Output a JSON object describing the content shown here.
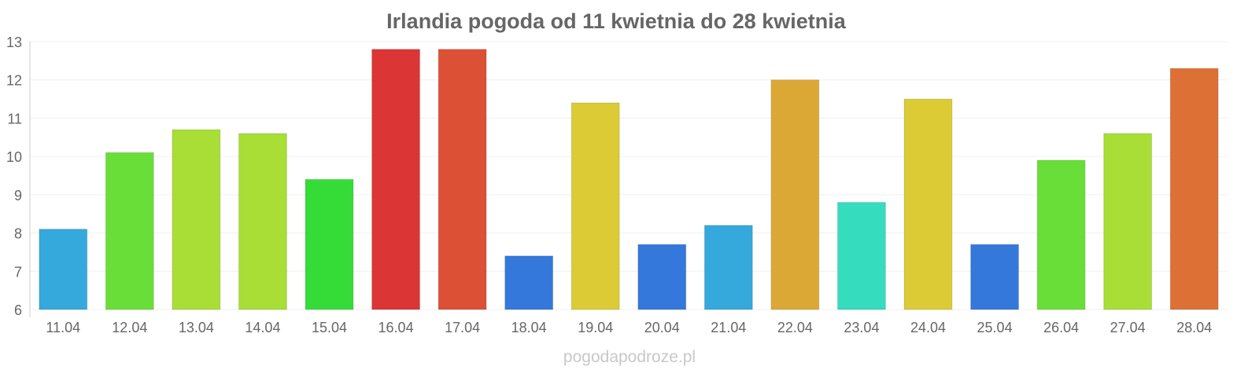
{
  "chart_data": {
    "type": "bar",
    "title": "Irlandia pogoda od 11 kwietnia do 28 kwietnia",
    "xlabel": "",
    "ylabel": "",
    "ylim": [
      6,
      13
    ],
    "yticks": [
      6,
      7,
      8,
      9,
      10,
      11,
      12,
      13
    ],
    "grid": true,
    "categories": [
      "11.04",
      "12.04",
      "13.04",
      "14.04",
      "15.04",
      "16.04",
      "17.04",
      "18.04",
      "19.04",
      "20.04",
      "21.04",
      "22.04",
      "23.04",
      "24.04",
      "25.04",
      "26.04",
      "27.04",
      "28.04"
    ],
    "values": [
      8.1,
      10.1,
      10.7,
      10.6,
      9.4,
      12.8,
      12.8,
      7.4,
      11.4,
      7.7,
      8.2,
      12.0,
      8.8,
      11.5,
      7.7,
      9.9,
      10.6,
      12.3
    ],
    "colors": [
      "#35a8dc",
      "#6ade38",
      "#a8de35",
      "#a8de35",
      "#35dc38",
      "#dc3535",
      "#dc5035",
      "#3578dc",
      "#dccb35",
      "#3578dc",
      "#35a8dc",
      "#dca835",
      "#35dcbd",
      "#dccb35",
      "#3578dc",
      "#6ade38",
      "#a8de35",
      "#dc7035"
    ]
  },
  "watermark": "pogodapodroze.pl"
}
